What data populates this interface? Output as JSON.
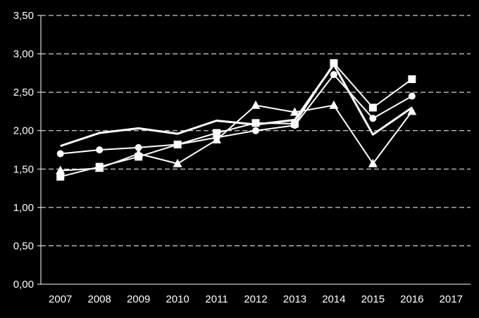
{
  "chart_data": {
    "type": "line",
    "title": "",
    "xlabel": "",
    "ylabel": "",
    "categories": [
      "2007",
      "2008",
      "2009",
      "2010",
      "2011",
      "2012",
      "2013",
      "2014",
      "2015",
      "2016",
      "2017"
    ],
    "y_ticks": [
      "0,00",
      "0,50",
      "1,00",
      "1,50",
      "2,00",
      "2,50",
      "3,00",
      "3,50"
    ],
    "ylim": [
      0,
      3.5
    ],
    "grid": "horizontal dashed",
    "legend": "none",
    "colors": {
      "background": "#000000",
      "line": "#ffffff",
      "axis": "#ffffff"
    },
    "series": [
      {
        "marker": "none",
        "values": [
          1.8,
          1.97,
          2.03,
          1.96,
          2.13,
          2.08,
          2.14,
          2.86,
          1.95,
          2.3,
          null
        ]
      },
      {
        "marker": "circle",
        "values": [
          1.7,
          1.75,
          1.78,
          1.82,
          1.91,
          2.0,
          2.07,
          2.73,
          2.16,
          2.45,
          null
        ]
      },
      {
        "marker": "square",
        "values": [
          1.4,
          1.53,
          1.66,
          1.82,
          1.97,
          2.1,
          2.09,
          2.88,
          2.3,
          2.67,
          null
        ]
      },
      {
        "marker": "triangle",
        "values": [
          1.48,
          1.51,
          1.7,
          1.57,
          1.88,
          2.33,
          2.24,
          2.33,
          1.57,
          2.25,
          null
        ]
      }
    ]
  }
}
